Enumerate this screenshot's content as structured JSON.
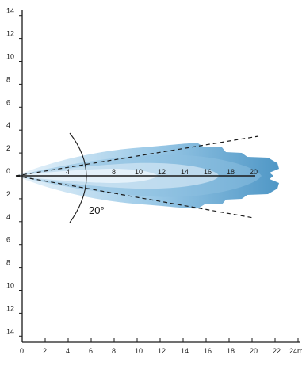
{
  "chart_data": {
    "type": "beam-diagram",
    "x_ticks": [
      "0",
      "2",
      "4",
      "6",
      "8",
      "10",
      "12",
      "14",
      "16",
      "18",
      "20",
      "22",
      "24m"
    ],
    "y_ticks_upper": [
      "14",
      "12",
      "10",
      "8",
      "6",
      "4",
      "2",
      "0"
    ],
    "y_ticks_lower": [
      "2",
      "4",
      "6",
      "8",
      "10",
      "12",
      "14"
    ],
    "distance_labels": [
      "4",
      "8",
      "10",
      "12",
      "14",
      "16",
      "18",
      "20"
    ],
    "angle_label": "20°",
    "beam_angle_deg": 20,
    "x_range": [
      0,
      24
    ],
    "y_range": [
      -14,
      14
    ],
    "colors": {
      "beam_outer": "#4f97c6",
      "beam_mid": "#8cbfe0",
      "beam_inner": "#cfe4f3",
      "beam_core": "#eaf4fb",
      "axis": "#1a1a1a"
    }
  }
}
